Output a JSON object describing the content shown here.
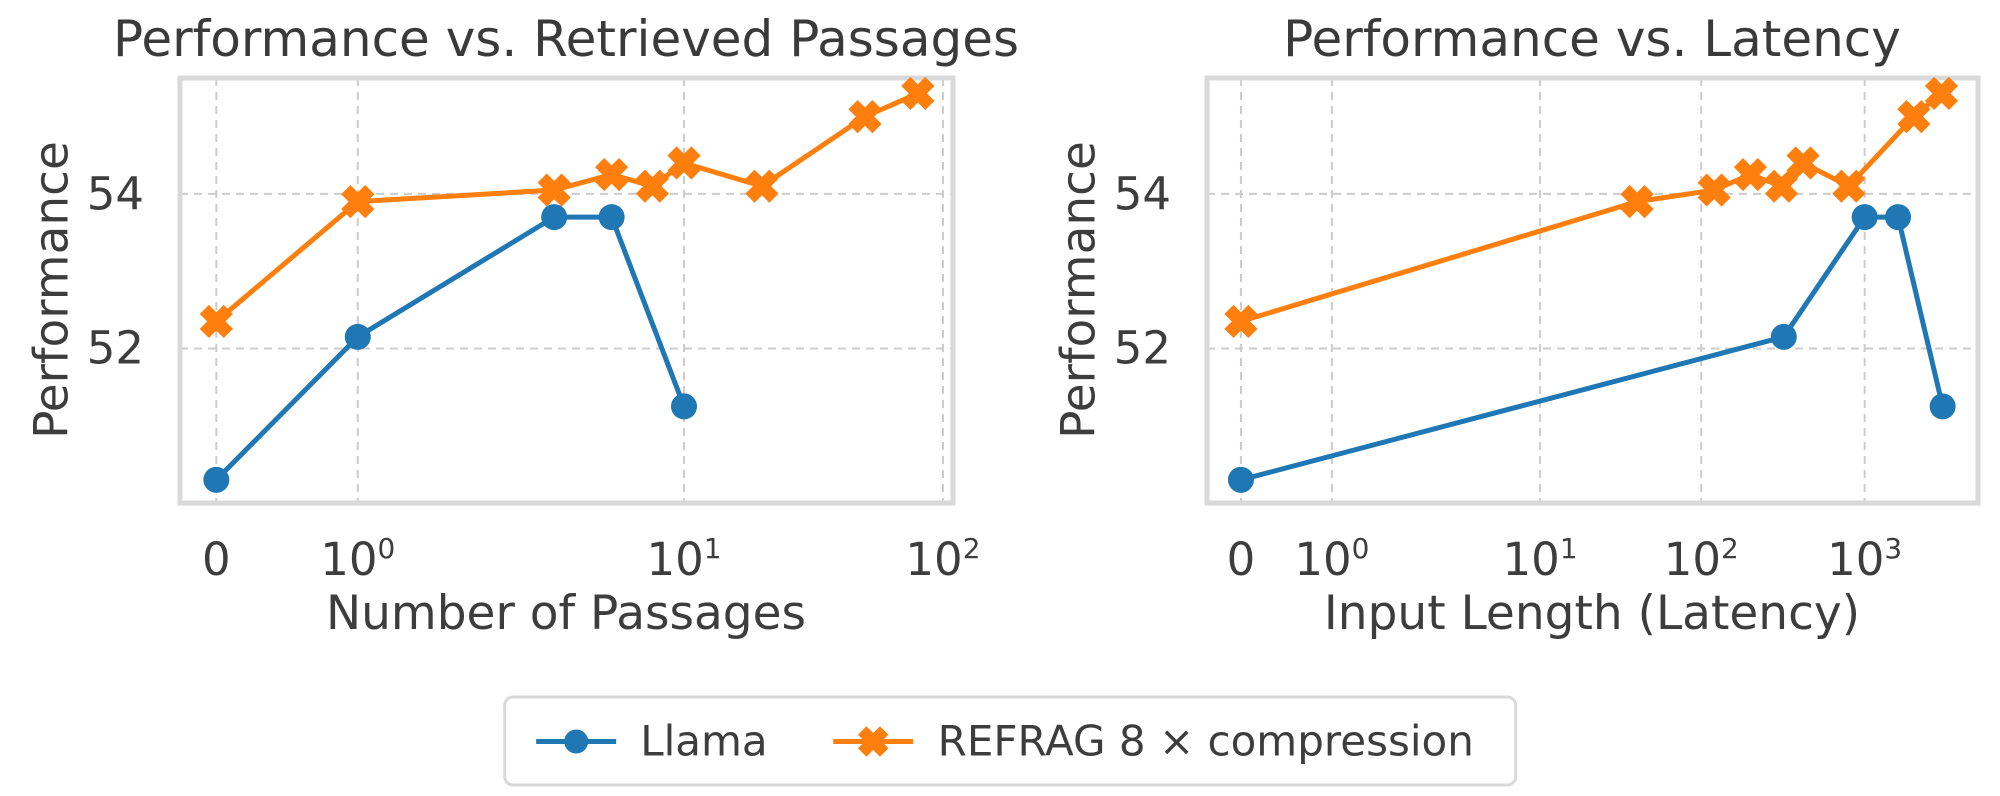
{
  "figure": {
    "kind": "two-panel line chart",
    "background": "#ffffff",
    "text_color": "#3d3d3d",
    "grid_color": "#cccccc",
    "frame_color": "#d9d9d9"
  },
  "legend": {
    "position": "bottom-center",
    "items": [
      {
        "label": "Llama",
        "color": "#1f77b4",
        "marker": "circle"
      },
      {
        "label": "REFRAG 8 × compression",
        "color": "#ff7f0e",
        "marker": "x"
      }
    ]
  },
  "chart_data": [
    {
      "type": "line",
      "title": "Performance vs. Retrieved Passages",
      "xlabel": "Number of Passages",
      "ylabel": "Performance",
      "x_scale": "symlog (0, then log decades)",
      "grid": "dashed major gridlines",
      "ylim": [
        50,
        55.5
      ],
      "y_ticks": [
        52,
        54
      ],
      "x_ticks": [
        {
          "value": 0,
          "label": "0"
        },
        {
          "value": 1,
          "base": "10",
          "exp": "0"
        },
        {
          "value": 10,
          "base": "10",
          "exp": "1"
        },
        {
          "value": 100,
          "base": "10",
          "exp": "2"
        }
      ],
      "x_anchors": [
        {
          "value": 0,
          "frac": 0.047
        },
        {
          "value": 1,
          "frac": 0.23
        },
        {
          "value": 10,
          "frac": 0.652
        },
        {
          "value": 100,
          "frac": 0.987
        }
      ],
      "series": [
        {
          "name": "Llama",
          "color": "#1f77b4",
          "marker": "circle",
          "x": [
            0,
            1,
            4,
            6,
            10
          ],
          "y": [
            50.3,
            52.15,
            53.7,
            53.7,
            51.25
          ]
        },
        {
          "name": "REFRAG 8 × compression",
          "color": "#ff7f0e",
          "marker": "x",
          "x": [
            0,
            1,
            4,
            6,
            8,
            10,
            20,
            50,
            80
          ],
          "y": [
            52.35,
            53.9,
            54.05,
            54.25,
            54.1,
            54.4,
            54.1,
            55.0,
            55.3
          ]
        }
      ]
    },
    {
      "type": "line",
      "title": "Performance vs. Latency",
      "xlabel": "Input Length (Latency)",
      "ylabel": "Performance",
      "x_scale": "symlog (0, then log decades)",
      "grid": "dashed major gridlines",
      "ylim": [
        50,
        55.5
      ],
      "y_ticks": [
        52,
        54
      ],
      "x_ticks": [
        {
          "value": 0,
          "label": "0"
        },
        {
          "value": 1,
          "base": "10",
          "exp": "0"
        },
        {
          "value": 10,
          "base": "10",
          "exp": "1"
        },
        {
          "value": 100,
          "base": "10",
          "exp": "2"
        },
        {
          "value": 1000,
          "base": "10",
          "exp": "3"
        }
      ],
      "x_anchors": [
        {
          "value": 0,
          "frac": 0.044
        },
        {
          "value": 1,
          "frac": 0.162
        },
        {
          "value": 10,
          "frac": 0.432
        },
        {
          "value": 100,
          "frac": 0.641
        },
        {
          "value": 1000,
          "frac": 0.853
        }
      ],
      "series": [
        {
          "name": "Llama",
          "color": "#1f77b4",
          "marker": "circle",
          "x": [
            0,
            320,
            1000,
            1600,
            3000
          ],
          "y": [
            50.3,
            52.15,
            53.7,
            53.7,
            51.25
          ]
        },
        {
          "name": "REFRAG 8 × compression",
          "color": "#ff7f0e",
          "marker": "x",
          "x": [
            0,
            40,
            120,
            200,
            310,
            420,
            800,
            2000,
            2950
          ],
          "y": [
            52.35,
            53.9,
            54.05,
            54.25,
            54.1,
            54.4,
            54.1,
            55.0,
            55.3
          ]
        }
      ]
    }
  ]
}
